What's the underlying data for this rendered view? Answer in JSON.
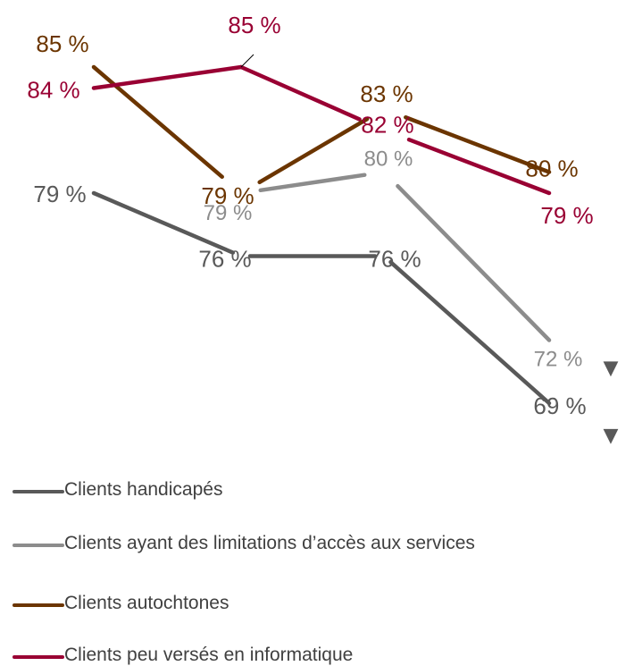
{
  "chart_data": {
    "type": "line",
    "categories": [
      "",
      "",
      "",
      ""
    ],
    "series": [
      {
        "name": "Clients handicapés",
        "color": "#595959",
        "values": [
          79,
          76,
          76,
          69
        ],
        "labels": [
          "79 %",
          "76 %",
          "76 %",
          "69 %"
        ]
      },
      {
        "name": "Clients ayant des limitations d’accès aux services",
        "color": "#8c8c8c",
        "values": [
          null,
          79,
          80,
          72
        ],
        "labels": [
          "",
          "79 %",
          "80 %",
          "72 %"
        ]
      },
      {
        "name": "Clients autochtones",
        "color": "#6b3500",
        "values": [
          85,
          79,
          83,
          80
        ],
        "labels": [
          "85 %",
          "79 %",
          "83 %",
          "80 %"
        ]
      },
      {
        "name": "Clients peu versés en informatique",
        "color": "#990033",
        "values": [
          84,
          85,
          82,
          79
        ],
        "labels": [
          "84 %",
          "85 %",
          "82 %",
          "79 %"
        ]
      }
    ],
    "markers": [
      {
        "series": 1,
        "point": 3,
        "symbol": "▼"
      },
      {
        "series": 0,
        "point": 3,
        "symbol": "▼"
      }
    ],
    "title": "",
    "xlabel": "",
    "ylabel": "",
    "grid": false,
    "legend_position": "bottom"
  },
  "legend": {
    "items": [
      {
        "label": "Clients handicapés",
        "color": "#595959"
      },
      {
        "label": "Clients ayant des limitations d’accès aux services",
        "color": "#8c8c8c"
      },
      {
        "label": "Clients autochtones",
        "color": "#6b3500"
      },
      {
        "label": "Clients peu versés en informatique",
        "color": "#990033"
      }
    ]
  },
  "colors": {
    "marker": "#595959"
  }
}
